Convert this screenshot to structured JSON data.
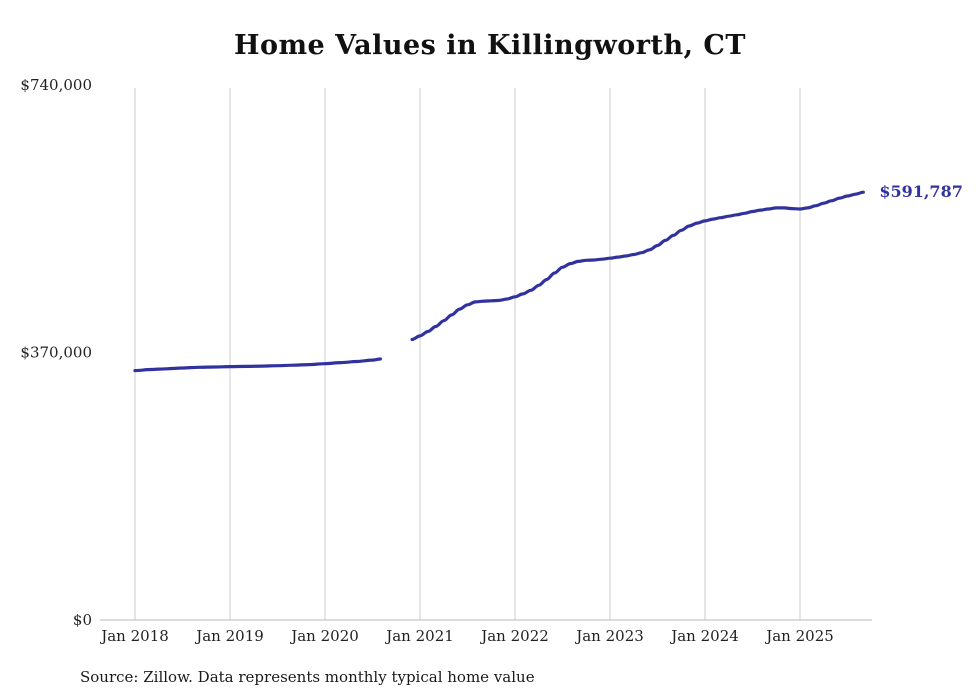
{
  "source_note": "Source: Zillow. Data represents monthly typical home value",
  "chart_data": {
    "type": "line",
    "title": "Home Values in Killingworth, CT",
    "xlabel": "",
    "ylabel": "",
    "ylim": [
      0,
      740000
    ],
    "grid": "vertical-only",
    "grid_color": "#cccccc",
    "axis_color": "#bbbbbb",
    "text_color": "#222222",
    "line_color": "#32329f",
    "end_label": "$591,787",
    "end_value": 591787,
    "yticks": [
      {
        "value": 0,
        "label": "$0"
      },
      {
        "value": 370000,
        "label": "$370,000"
      },
      {
        "value": 740000,
        "label": "$740,000"
      }
    ],
    "xticks": [
      {
        "year": 2018,
        "label": "Jan 2018"
      },
      {
        "year": 2019,
        "label": "Jan 2019"
      },
      {
        "year": 2020,
        "label": "Jan 2020"
      },
      {
        "year": 2021,
        "label": "Jan 2021"
      },
      {
        "year": 2022,
        "label": "Jan 2022"
      },
      {
        "year": 2023,
        "label": "Jan 2023"
      },
      {
        "year": 2024,
        "label": "Jan 2024"
      },
      {
        "year": 2025,
        "label": "Jan 2025"
      }
    ],
    "series": [
      {
        "name": "typical-home-value-2018-2020",
        "points": [
          [
            "2018-01",
            345000
          ],
          [
            "2018-03",
            346500
          ],
          [
            "2018-05",
            347500
          ],
          [
            "2018-07",
            348500
          ],
          [
            "2018-09",
            349500
          ],
          [
            "2018-11",
            350000
          ],
          [
            "2019-01",
            350500
          ],
          [
            "2019-03",
            350800
          ],
          [
            "2019-05",
            351200
          ],
          [
            "2019-07",
            351800
          ],
          [
            "2019-09",
            352500
          ],
          [
            "2019-11",
            353200
          ],
          [
            "2020-01",
            354500
          ],
          [
            "2020-03",
            356000
          ],
          [
            "2020-05",
            357500
          ],
          [
            "2020-07",
            359500
          ],
          [
            "2020-08",
            361000
          ]
        ]
      },
      {
        "name": "typical-home-value-2020-2025",
        "points": [
          [
            "2020-12",
            388000
          ],
          [
            "2021-01",
            393000
          ],
          [
            "2021-02",
            399000
          ],
          [
            "2021-03",
            406000
          ],
          [
            "2021-04",
            414000
          ],
          [
            "2021-05",
            422000
          ],
          [
            "2021-06",
            430000
          ],
          [
            "2021-07",
            436000
          ],
          [
            "2021-08",
            440000
          ],
          [
            "2021-09",
            441000
          ],
          [
            "2021-10",
            441500
          ],
          [
            "2021-11",
            442000
          ],
          [
            "2021-12",
            444000
          ],
          [
            "2022-01",
            447000
          ],
          [
            "2022-02",
            451000
          ],
          [
            "2022-03",
            456000
          ],
          [
            "2022-04",
            463000
          ],
          [
            "2022-05",
            471000
          ],
          [
            "2022-06",
            480000
          ],
          [
            "2022-07",
            488000
          ],
          [
            "2022-08",
            493000
          ],
          [
            "2022-09",
            496000
          ],
          [
            "2022-10",
            497500
          ],
          [
            "2022-11",
            498000
          ],
          [
            "2022-12",
            499000
          ],
          [
            "2023-01",
            500500
          ],
          [
            "2023-02",
            502000
          ],
          [
            "2023-03",
            503500
          ],
          [
            "2023-04",
            505500
          ],
          [
            "2023-05",
            508000
          ],
          [
            "2023-06",
            512000
          ],
          [
            "2023-07",
            518000
          ],
          [
            "2023-08",
            525000
          ],
          [
            "2023-09",
            532000
          ],
          [
            "2023-10",
            539000
          ],
          [
            "2023-11",
            545000
          ],
          [
            "2023-12",
            549000
          ],
          [
            "2024-01",
            552000
          ],
          [
            "2024-02",
            554500
          ],
          [
            "2024-03",
            556500
          ],
          [
            "2024-04",
            558500
          ],
          [
            "2024-05",
            560500
          ],
          [
            "2024-06",
            562500
          ],
          [
            "2024-07",
            565000
          ],
          [
            "2024-08",
            567000
          ],
          [
            "2024-09",
            568500
          ],
          [
            "2024-10",
            570000
          ],
          [
            "2024-11",
            570000
          ],
          [
            "2024-12",
            569000
          ],
          [
            "2025-01",
            568500
          ],
          [
            "2025-02",
            570000
          ],
          [
            "2025-03",
            573000
          ],
          [
            "2025-04",
            576500
          ],
          [
            "2025-05",
            580000
          ],
          [
            "2025-06",
            583500
          ],
          [
            "2025-07",
            586500
          ],
          [
            "2025-08",
            589000
          ],
          [
            "2025-09",
            591787
          ]
        ]
      }
    ]
  }
}
